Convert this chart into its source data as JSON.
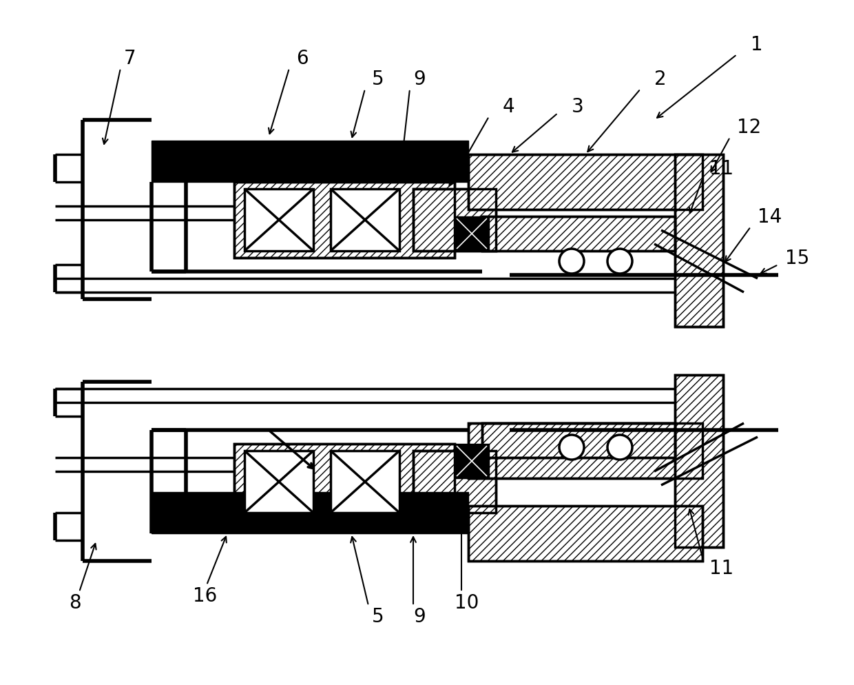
{
  "bg_color": "#ffffff",
  "line_color": "#000000",
  "label_fontsize": 20,
  "figsize": [
    12.4,
    9.95
  ],
  "dpi": 100,
  "xlim": [
    0,
    124
  ],
  "ylim": [
    0,
    99.5
  ]
}
